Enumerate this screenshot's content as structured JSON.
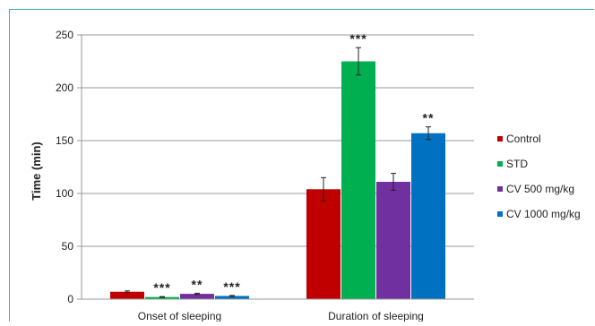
{
  "chart_data": {
    "type": "bar",
    "title": "",
    "xlabel": "",
    "ylabel": "Time (min)",
    "ylim": [
      0,
      250
    ],
    "yticks": [
      0,
      50,
      100,
      150,
      200,
      250
    ],
    "grid": true,
    "legend_position": "right",
    "categories": [
      "Onset of sleeping",
      "Duration of sleeping"
    ],
    "series": [
      {
        "name": "Control",
        "color": "#c00000",
        "values": [
          7,
          104
        ],
        "errors": [
          0.8,
          11
        ],
        "significance": [
          "",
          ""
        ]
      },
      {
        "name": "STD",
        "color": "#00b050",
        "values": [
          2,
          225
        ],
        "errors": [
          0.4,
          13
        ],
        "significance": [
          "***",
          "***"
        ]
      },
      {
        "name": "CV 500 mg/kg",
        "color": "#7030a0",
        "values": [
          5,
          111
        ],
        "errors": [
          0.6,
          8
        ],
        "significance": [
          "**",
          ""
        ]
      },
      {
        "name": "CV 1000 mg/kg",
        "color": "#0070c0",
        "values": [
          3,
          157
        ],
        "errors": [
          0.5,
          6
        ],
        "significance": [
          "***",
          "**"
        ]
      }
    ]
  }
}
